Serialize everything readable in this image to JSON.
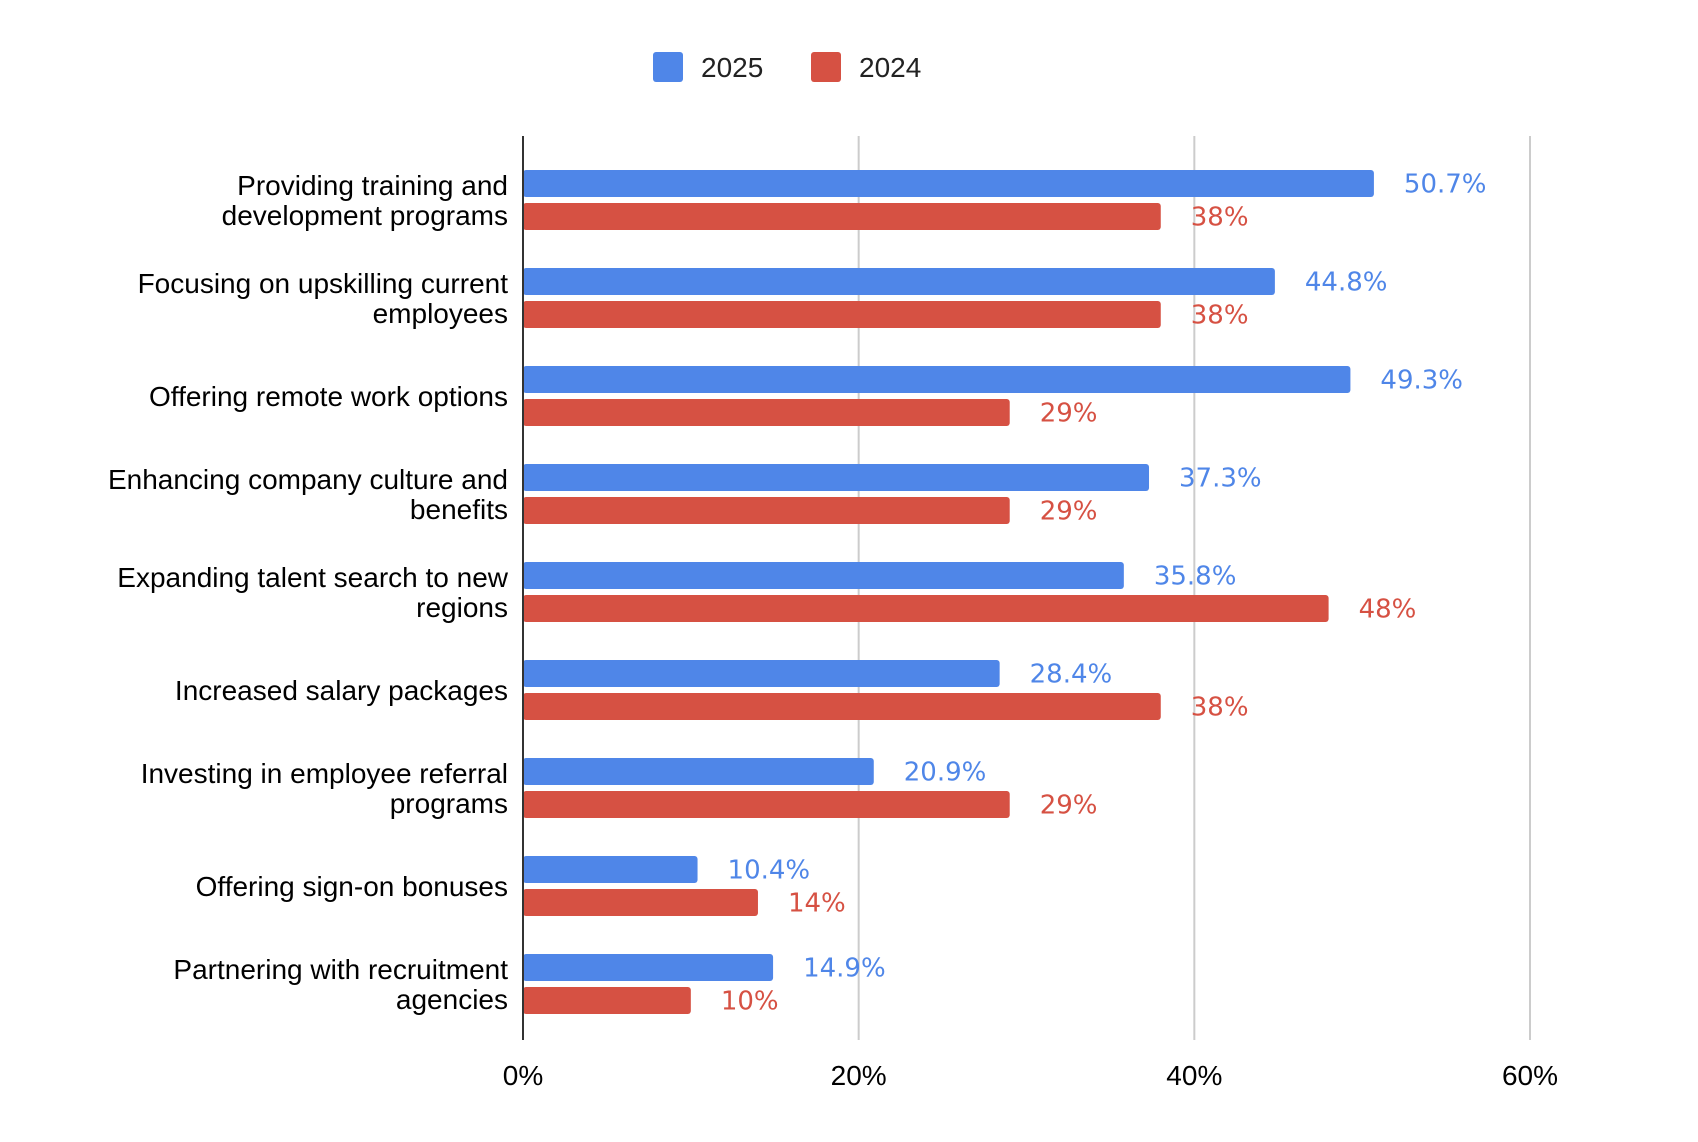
{
  "chart_data": {
    "type": "bar",
    "orientation": "horizontal",
    "title": "",
    "xlabel": "",
    "ylabel": "",
    "xlim": [
      0,
      60
    ],
    "x_ticks": [
      0,
      20,
      40,
      60
    ],
    "x_tick_labels": [
      "0%",
      "20%",
      "40%",
      "60%"
    ],
    "value_suffix": "%",
    "grid": true,
    "legend_position": "top-center",
    "categories": [
      [
        "Providing training and",
        "development programs"
      ],
      [
        "Focusing on upskilling current",
        "employees"
      ],
      [
        "Offering remote work options"
      ],
      [
        "Enhancing company culture and",
        "benefits"
      ],
      [
        "Expanding talent search to new",
        "regions"
      ],
      [
        "Increased salary packages"
      ],
      [
        "Investing in employee referral",
        "programs"
      ],
      [
        "Offering sign-on bonuses"
      ],
      [
        "Partnering with recruitment",
        "agencies"
      ]
    ],
    "series": [
      {
        "name": "2025",
        "color": "#4f86e8",
        "values": [
          50.7,
          44.8,
          49.3,
          37.3,
          35.8,
          28.4,
          20.9,
          10.4,
          14.9
        ],
        "labels": [
          "50.7%",
          "44.8%",
          "49.3%",
          "37.3%",
          "35.8%",
          "28.4%",
          "20.9%",
          "10.4%",
          "14.9%"
        ]
      },
      {
        "name": "2024",
        "color": "#d65143",
        "values": [
          38,
          38,
          29,
          29,
          48,
          38,
          29,
          14,
          10
        ],
        "labels": [
          "38%",
          "38%",
          "29%",
          "29%",
          "48%",
          "38%",
          "29%",
          "14%",
          "10%"
        ]
      }
    ],
    "gridline_color": "#cccccc",
    "axis_color": "#333333"
  }
}
